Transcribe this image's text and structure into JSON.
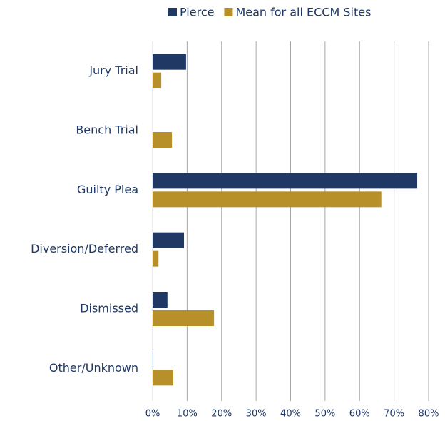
{
  "chart_data": {
    "type": "hbar",
    "categories": [
      "Jury Trial",
      "Bench Trial",
      "Guilty Plea",
      "Diversion/Deferred",
      "Dismissed",
      "Other/Unknown"
    ],
    "series": [
      {
        "name": "Pierce",
        "color": "#1f3864",
        "values": [
          9.7,
          0,
          76.7,
          9.1,
          4.3,
          0.2
        ]
      },
      {
        "name": "Mean for all ECCM Sites",
        "color": "#b8902a",
        "values": [
          2.5,
          5.6,
          66.3,
          1.7,
          17.8,
          6.0
        ]
      }
    ],
    "xlim": [
      0,
      80
    ],
    "xticks": [
      {
        "value": 0,
        "label": "0%"
      },
      {
        "value": 10,
        "label": "10%"
      },
      {
        "value": 20,
        "label": "20%"
      },
      {
        "value": 30,
        "label": "30%"
      },
      {
        "value": 40,
        "label": "40%"
      },
      {
        "value": 50,
        "label": "50%"
      },
      {
        "value": 60,
        "label": "60%"
      },
      {
        "value": 70,
        "label": "70%"
      },
      {
        "value": 80,
        "label": "80%"
      }
    ],
    "grid": true,
    "legend": "top"
  }
}
